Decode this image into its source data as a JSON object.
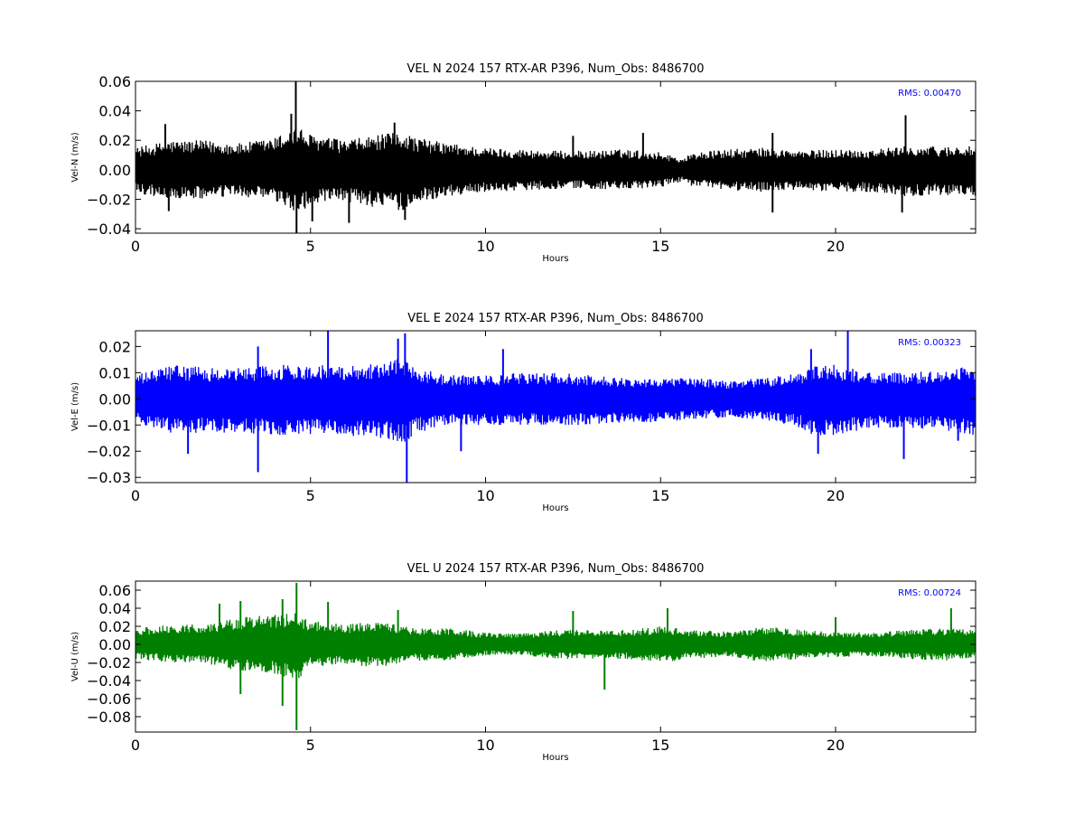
{
  "chart_data": [
    {
      "type": "line",
      "title": "VEL N 2024 157 RTX-AR  P396, Num_Obs: 8486700",
      "xlabel": "Hours",
      "ylabel": "Vel-N (m/s)",
      "xlim": [
        0,
        24
      ],
      "ylim": [
        -0.043,
        0.06
      ],
      "xticks": [
        "0",
        "5",
        "10",
        "15",
        "20"
      ],
      "yticks": [
        "0.06",
        "0.04",
        "0.02",
        "0.00",
        "−0.02",
        "−0.04"
      ],
      "rms_label": "RMS:  0.00470",
      "rms_color": "#0000ff",
      "line_color": "#000000",
      "grid": false,
      "envelope": {
        "hours": [
          0,
          1,
          2,
          3,
          4,
          4.6,
          5,
          6,
          7,
          7.7,
          8,
          9,
          10,
          11,
          12,
          13,
          14,
          15,
          15.6,
          16,
          17,
          18,
          19,
          20,
          21,
          22,
          23,
          24
        ],
        "upper": [
          0.015,
          0.02,
          0.02,
          0.018,
          0.022,
          0.03,
          0.024,
          0.02,
          0.024,
          0.026,
          0.022,
          0.018,
          0.015,
          0.014,
          0.013,
          0.013,
          0.014,
          0.012,
          0.008,
          0.012,
          0.014,
          0.015,
          0.013,
          0.014,
          0.014,
          0.016,
          0.016,
          0.016
        ],
        "lower": [
          -0.016,
          -0.02,
          -0.02,
          -0.018,
          -0.022,
          -0.03,
          -0.024,
          -0.022,
          -0.026,
          -0.028,
          -0.022,
          -0.018,
          -0.015,
          -0.014,
          -0.013,
          -0.013,
          -0.014,
          -0.012,
          -0.008,
          -0.012,
          -0.014,
          -0.015,
          -0.014,
          -0.015,
          -0.015,
          -0.018,
          -0.017,
          -0.018
        ]
      },
      "spikes": [
        {
          "h": 0.85,
          "v": 0.031
        },
        {
          "h": 0.95,
          "v": -0.028
        },
        {
          "h": 4.45,
          "v": 0.038
        },
        {
          "h": 4.58,
          "v": 0.06
        },
        {
          "h": 4.6,
          "v": -0.043
        },
        {
          "h": 5.05,
          "v": -0.035
        },
        {
          "h": 6.1,
          "v": -0.036
        },
        {
          "h": 7.4,
          "v": 0.032
        },
        {
          "h": 7.7,
          "v": -0.034
        },
        {
          "h": 12.5,
          "v": 0.023
        },
        {
          "h": 14.5,
          "v": 0.025
        },
        {
          "h": 18.2,
          "v": 0.025
        },
        {
          "h": 18.2,
          "v": -0.029
        },
        {
          "h": 21.9,
          "v": -0.029
        },
        {
          "h": 22.0,
          "v": 0.037
        }
      ]
    },
    {
      "type": "line",
      "title": "VEL E 2024 157 RTX-AR  P396, Num_Obs: 8486700",
      "xlabel": "Hours",
      "ylabel": "Vel-E (m/s)",
      "xlim": [
        0,
        24
      ],
      "ylim": [
        -0.032,
        0.026
      ],
      "xticks": [
        "0",
        "5",
        "10",
        "15",
        "20"
      ],
      "yticks": [
        "0.02",
        "0.01",
        "0.00",
        "−0.01",
        "−0.02",
        "−0.03"
      ],
      "rms_label": "RMS:  0.00323",
      "rms_color": "#0000ff",
      "line_color": "#0000ff",
      "grid": false,
      "envelope": {
        "hours": [
          0,
          1,
          2,
          3,
          4,
          5,
          6,
          7,
          7.7,
          8,
          9,
          10,
          11,
          12,
          13,
          14,
          15,
          16,
          17,
          18,
          19,
          19.5,
          20,
          21,
          22,
          23,
          24
        ],
        "upper": [
          0.009,
          0.013,
          0.012,
          0.012,
          0.013,
          0.013,
          0.013,
          0.014,
          0.016,
          0.012,
          0.009,
          0.009,
          0.01,
          0.01,
          0.009,
          0.008,
          0.008,
          0.008,
          0.007,
          0.008,
          0.01,
          0.013,
          0.013,
          0.01,
          0.01,
          0.011,
          0.013
        ],
        "lower": [
          -0.009,
          -0.013,
          -0.013,
          -0.013,
          -0.014,
          -0.014,
          -0.014,
          -0.015,
          -0.017,
          -0.013,
          -0.01,
          -0.01,
          -0.01,
          -0.01,
          -0.01,
          -0.009,
          -0.009,
          -0.008,
          -0.007,
          -0.008,
          -0.011,
          -0.015,
          -0.014,
          -0.011,
          -0.011,
          -0.012,
          -0.014
        ]
      },
      "spikes": [
        {
          "h": 1.5,
          "v": -0.021
        },
        {
          "h": 3.5,
          "v": 0.02
        },
        {
          "h": 3.5,
          "v": -0.028
        },
        {
          "h": 5.5,
          "v": 0.026
        },
        {
          "h": 7.5,
          "v": 0.023
        },
        {
          "h": 7.7,
          "v": 0.025
        },
        {
          "h": 7.75,
          "v": -0.032
        },
        {
          "h": 9.3,
          "v": -0.02
        },
        {
          "h": 10.5,
          "v": 0.019
        },
        {
          "h": 19.3,
          "v": 0.019
        },
        {
          "h": 19.5,
          "v": -0.021
        },
        {
          "h": 20.35,
          "v": 0.026
        },
        {
          "h": 21.95,
          "v": -0.023
        },
        {
          "h": 23.5,
          "v": -0.016
        }
      ]
    },
    {
      "type": "line",
      "title": "VEL U 2024 157 RTX-AR  P396, Num_Obs: 8486700",
      "xlabel": "Hours",
      "ylabel": "Vel-U (m/s)",
      "xlim": [
        0,
        24
      ],
      "ylim": [
        -0.097,
        0.07
      ],
      "xticks": [
        "0",
        "5",
        "10",
        "15",
        "20"
      ],
      "yticks": [
        "0.06",
        "0.04",
        "0.02",
        "0.00",
        "−0.02",
        "−0.04",
        "−0.06",
        "−0.08"
      ],
      "rms_label": "RMS:  0.00724",
      "rms_color": "#0000ff",
      "line_color": "#008000",
      "grid": false,
      "envelope": {
        "hours": [
          0,
          1,
          2,
          3,
          4,
          4.6,
          5,
          6,
          7,
          8,
          9,
          10,
          11,
          12,
          13,
          14,
          15,
          16,
          17,
          18,
          19,
          20,
          21,
          22,
          23,
          24
        ],
        "upper": [
          0.018,
          0.022,
          0.022,
          0.03,
          0.033,
          0.035,
          0.026,
          0.022,
          0.026,
          0.018,
          0.018,
          0.013,
          0.012,
          0.016,
          0.016,
          0.016,
          0.02,
          0.016,
          0.014,
          0.02,
          0.016,
          0.014,
          0.013,
          0.016,
          0.018,
          0.016
        ],
        "lower": [
          -0.016,
          -0.02,
          -0.022,
          -0.03,
          -0.033,
          -0.04,
          -0.026,
          -0.022,
          -0.026,
          -0.018,
          -0.018,
          -0.012,
          -0.012,
          -0.016,
          -0.016,
          -0.016,
          -0.02,
          -0.016,
          -0.014,
          -0.02,
          -0.016,
          -0.014,
          -0.013,
          -0.016,
          -0.018,
          -0.016
        ]
      },
      "spikes": [
        {
          "h": 2.4,
          "v": 0.045
        },
        {
          "h": 3.0,
          "v": 0.048
        },
        {
          "h": 3.0,
          "v": -0.055
        },
        {
          "h": 4.2,
          "v": 0.05
        },
        {
          "h": 4.2,
          "v": -0.068
        },
        {
          "h": 4.6,
          "v": 0.068
        },
        {
          "h": 4.6,
          "v": -0.095
        },
        {
          "h": 5.5,
          "v": 0.047
        },
        {
          "h": 7.5,
          "v": 0.038
        },
        {
          "h": 12.5,
          "v": 0.037
        },
        {
          "h": 13.4,
          "v": -0.05
        },
        {
          "h": 15.2,
          "v": 0.04
        },
        {
          "h": 20.0,
          "v": 0.03
        },
        {
          "h": 23.3,
          "v": 0.04
        }
      ]
    }
  ]
}
